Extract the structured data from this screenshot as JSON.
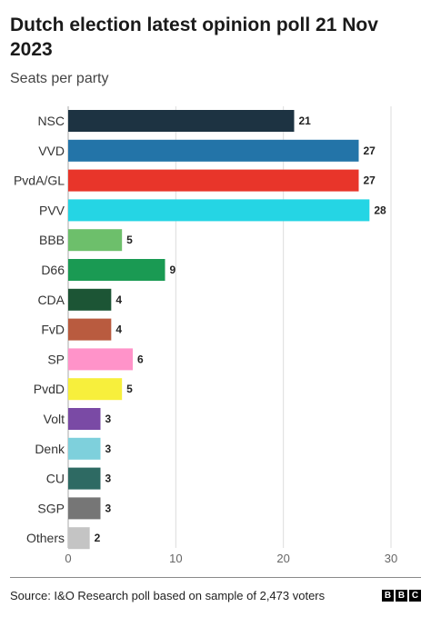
{
  "chart_data": {
    "type": "bar",
    "orientation": "horizontal",
    "title": "Dutch election latest opinion poll 21 Nov 2023",
    "subtitle": "Seats per party",
    "categories": [
      "NSC",
      "VVD",
      "PvdA/GL",
      "PVV",
      "BBB",
      "D66",
      "CDA",
      "FvD",
      "SP",
      "PvdD",
      "Volt",
      "Denk",
      "CU",
      "SGP",
      "Others"
    ],
    "values": [
      21,
      27,
      27,
      28,
      5,
      9,
      4,
      4,
      6,
      5,
      3,
      3,
      3,
      3,
      2
    ],
    "colors": [
      "#1d3342",
      "#2374a8",
      "#e8352a",
      "#25d5e4",
      "#6dbf6b",
      "#1a9a53",
      "#1c5535",
      "#b95b3f",
      "#ff93c9",
      "#f7ef3c",
      "#7a4aa5",
      "#7ed0dc",
      "#2e6a63",
      "#767676",
      "#c4c4c4"
    ],
    "xlim": [
      0,
      30
    ],
    "xticks": [
      0,
      10,
      20,
      30
    ],
    "xlabel": "",
    "ylabel": "",
    "grid": true,
    "data_labels": true,
    "legend": "none"
  },
  "footer": {
    "source": "Source: I&O Research poll based on sample of 2,473 voters",
    "logo_letters": [
      "B",
      "B",
      "C"
    ]
  }
}
